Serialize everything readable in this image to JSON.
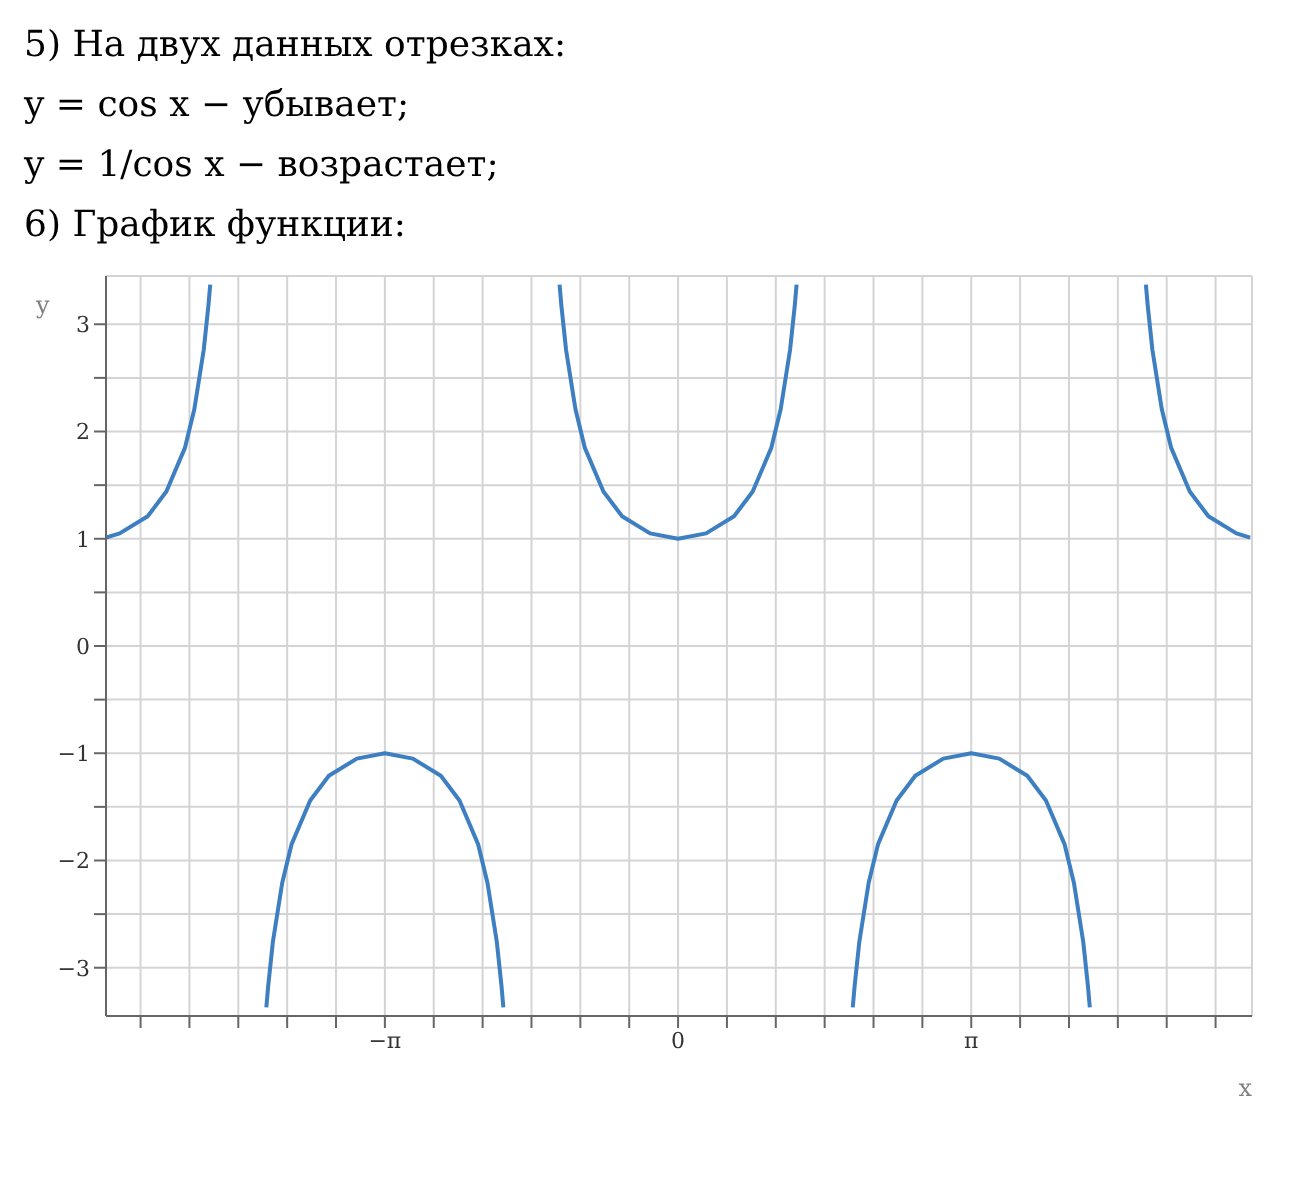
{
  "chart_data": {
    "type": "line",
    "annotations": [
      "5) На двух данных отрезках:",
      "y = cos x − убывает;",
      "y = 1/cos x − возрастает;",
      "6) График функции:"
    ],
    "xlabel": "x",
    "ylabel": "y",
    "x": [
      -6.13,
      -5.983,
      -5.683,
      -5.483,
      -5.283,
      -5.183,
      -5.083,
      -5.033,
      -5.013,
      -4.712,
      -4.412,
      -4.392,
      -4.342,
      -4.242,
      -4.142,
      -3.942,
      -3.742,
      -3.442,
      -3.142,
      -2.842,
      -2.542,
      -2.342,
      -2.142,
      -2.042,
      -1.942,
      -1.892,
      -1.872,
      -1.571,
      -1.27,
      -1.25,
      -1.2,
      -1.1,
      -1.0,
      -0.8,
      -0.6,
      -0.3,
      0,
      0.3,
      0.6,
      0.8,
      1.0,
      1.1,
      1.2,
      1.25,
      1.27,
      1.571,
      1.872,
      1.892,
      1.942,
      2.042,
      2.142,
      2.342,
      2.542,
      2.842,
      3.142,
      3.442,
      3.742,
      3.942,
      4.142,
      4.242,
      4.342,
      4.392,
      4.412,
      4.712,
      5.013,
      5.033,
      5.083,
      5.183,
      5.283,
      5.483,
      5.683,
      5.983,
      6.13
    ],
    "series": [
      {
        "color": "#3d7fc1",
        "values": [
          1.01,
          1.05,
          1.21,
          1.44,
          1.85,
          2.21,
          2.76,
          3.17,
          3.37,
          null,
          -3.37,
          -3.17,
          -2.76,
          -2.21,
          -1.85,
          -1.44,
          -1.21,
          -1.05,
          -1,
          -1.05,
          -1.21,
          -1.44,
          -1.85,
          -2.21,
          -2.76,
          -3.17,
          -3.37,
          null,
          3.37,
          3.17,
          2.76,
          2.21,
          1.85,
          1.44,
          1.21,
          1.05,
          1,
          1.05,
          1.21,
          1.44,
          1.85,
          2.21,
          2.76,
          3.17,
          3.37,
          null,
          -3.37,
          -3.17,
          -2.76,
          -2.21,
          -1.85,
          -1.44,
          -1.21,
          -1.05,
          -1,
          -1.05,
          -1.21,
          -1.44,
          -1.85,
          -2.21,
          -2.76,
          -3.17,
          -3.37,
          null,
          3.37,
          3.17,
          2.76,
          2.21,
          1.85,
          1.44,
          1.21,
          1.05,
          1.01
        ]
      }
    ],
    "xlim": [
      -6.13,
      6.15
    ],
    "xticks": [
      {
        "value": -5.7596,
        "label": null
      },
      {
        "value": -5.236,
        "label": null
      },
      {
        "value": -4.7124,
        "label": null
      },
      {
        "value": -4.1888,
        "label": null
      },
      {
        "value": -3.6652,
        "label": null
      },
      {
        "value": -3.1416,
        "label": "−π"
      },
      {
        "value": -2.618,
        "label": null
      },
      {
        "value": -2.0944,
        "label": null
      },
      {
        "value": -1.5708,
        "label": null
      },
      {
        "value": -1.0472,
        "label": null
      },
      {
        "value": -0.5236,
        "label": null
      },
      0,
      {
        "value": 0.5236,
        "label": null
      },
      {
        "value": 1.0472,
        "label": null
      },
      {
        "value": 1.5708,
        "label": null
      },
      {
        "value": 2.0944,
        "label": null
      },
      {
        "value": 2.618,
        "label": null
      },
      {
        "value": 3.1416,
        "label": "π"
      },
      {
        "value": 3.6652,
        "label": null
      },
      {
        "value": 4.1888,
        "label": null
      },
      {
        "value": 4.7124,
        "label": null
      },
      {
        "value": 5.236,
        "label": null
      },
      {
        "value": 5.7596,
        "label": null
      }
    ],
    "ylim": [
      -3.45,
      3.45
    ],
    "yticks": [
      {
        "value": -3,
        "label": "−3"
      },
      {
        "value": -2.5,
        "label": null
      },
      {
        "value": -2,
        "label": "−2"
      },
      {
        "value": -1.5,
        "label": null
      },
      {
        "value": -1,
        "label": "−1"
      },
      {
        "value": -0.5,
        "label": null
      },
      0,
      {
        "value": 0.5,
        "label": null
      },
      1,
      {
        "value": 1.5,
        "label": null
      },
      2,
      {
        "value": 2.5,
        "label": null
      },
      3
    ],
    "grid": true,
    "marker": "none",
    "line_style": "solid"
  }
}
